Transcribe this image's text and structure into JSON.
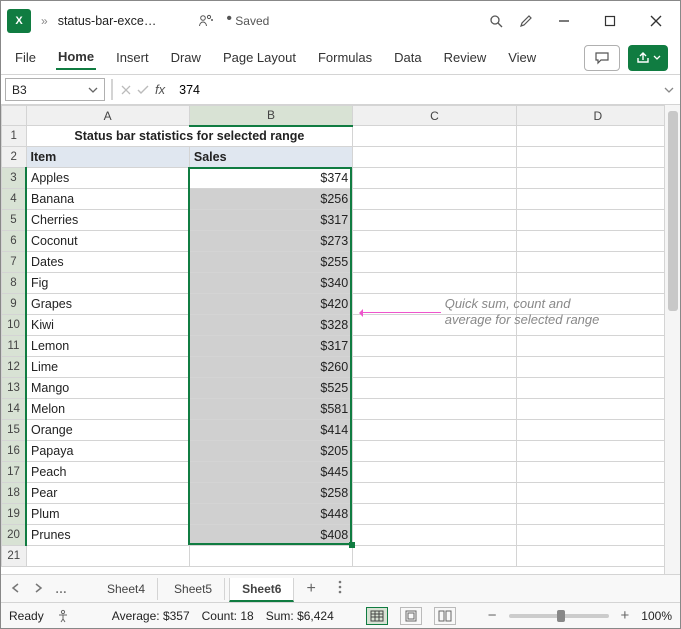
{
  "window": {
    "app_icon_letter": "X",
    "chevrons": "»",
    "filename": "status-bar-exce…",
    "saved_label": "Saved"
  },
  "ribbon": {
    "tabs": [
      "File",
      "Home",
      "Insert",
      "Draw",
      "Page Layout",
      "Formulas",
      "Data",
      "Review",
      "View"
    ],
    "active_index": 1
  },
  "formula_bar": {
    "name_box": "B3",
    "fx_label": "fx",
    "value": "374"
  },
  "columns": [
    "A",
    "B",
    "C",
    "D"
  ],
  "sheet_title": "Status bar statistics for selected range",
  "headers": {
    "item": "Item",
    "sales": "Sales"
  },
  "rows": [
    {
      "n": 3,
      "item": "Apples",
      "sales": "$374"
    },
    {
      "n": 4,
      "item": "Banana",
      "sales": "$256"
    },
    {
      "n": 5,
      "item": "Cherries",
      "sales": "$317"
    },
    {
      "n": 6,
      "item": "Coconut",
      "sales": "$273"
    },
    {
      "n": 7,
      "item": "Dates",
      "sales": "$255"
    },
    {
      "n": 8,
      "item": "Fig",
      "sales": "$340"
    },
    {
      "n": 9,
      "item": "Grapes",
      "sales": "$420"
    },
    {
      "n": 10,
      "item": "Kiwi",
      "sales": "$328"
    },
    {
      "n": 11,
      "item": "Lemon",
      "sales": "$317"
    },
    {
      "n": 12,
      "item": "Lime",
      "sales": "$260"
    },
    {
      "n": 13,
      "item": "Mango",
      "sales": "$525"
    },
    {
      "n": 14,
      "item": "Melon",
      "sales": "$581"
    },
    {
      "n": 15,
      "item": "Orange",
      "sales": "$414"
    },
    {
      "n": 16,
      "item": "Papaya",
      "sales": "$205"
    },
    {
      "n": 17,
      "item": "Peach",
      "sales": "$445"
    },
    {
      "n": 18,
      "item": "Pear",
      "sales": "$258"
    },
    {
      "n": 19,
      "item": "Plum",
      "sales": "$448"
    },
    {
      "n": 20,
      "item": "Prunes",
      "sales": "$408"
    }
  ],
  "empty_row": 21,
  "annotation": {
    "line1": "Quick sum, count and",
    "line2": "average for selected range"
  },
  "sheet_tabs": {
    "tabs": [
      "Sheet4",
      "Sheet5",
      "Sheet6"
    ],
    "active_index": 2,
    "ellipsis": "…"
  },
  "status": {
    "ready": "Ready",
    "average_label": "Average:",
    "average": "$357",
    "count_label": "Count:",
    "count": "18",
    "sum_label": "Sum:",
    "sum": "$6,424",
    "zoom": "100%",
    "minus": "−",
    "plus": "+"
  }
}
